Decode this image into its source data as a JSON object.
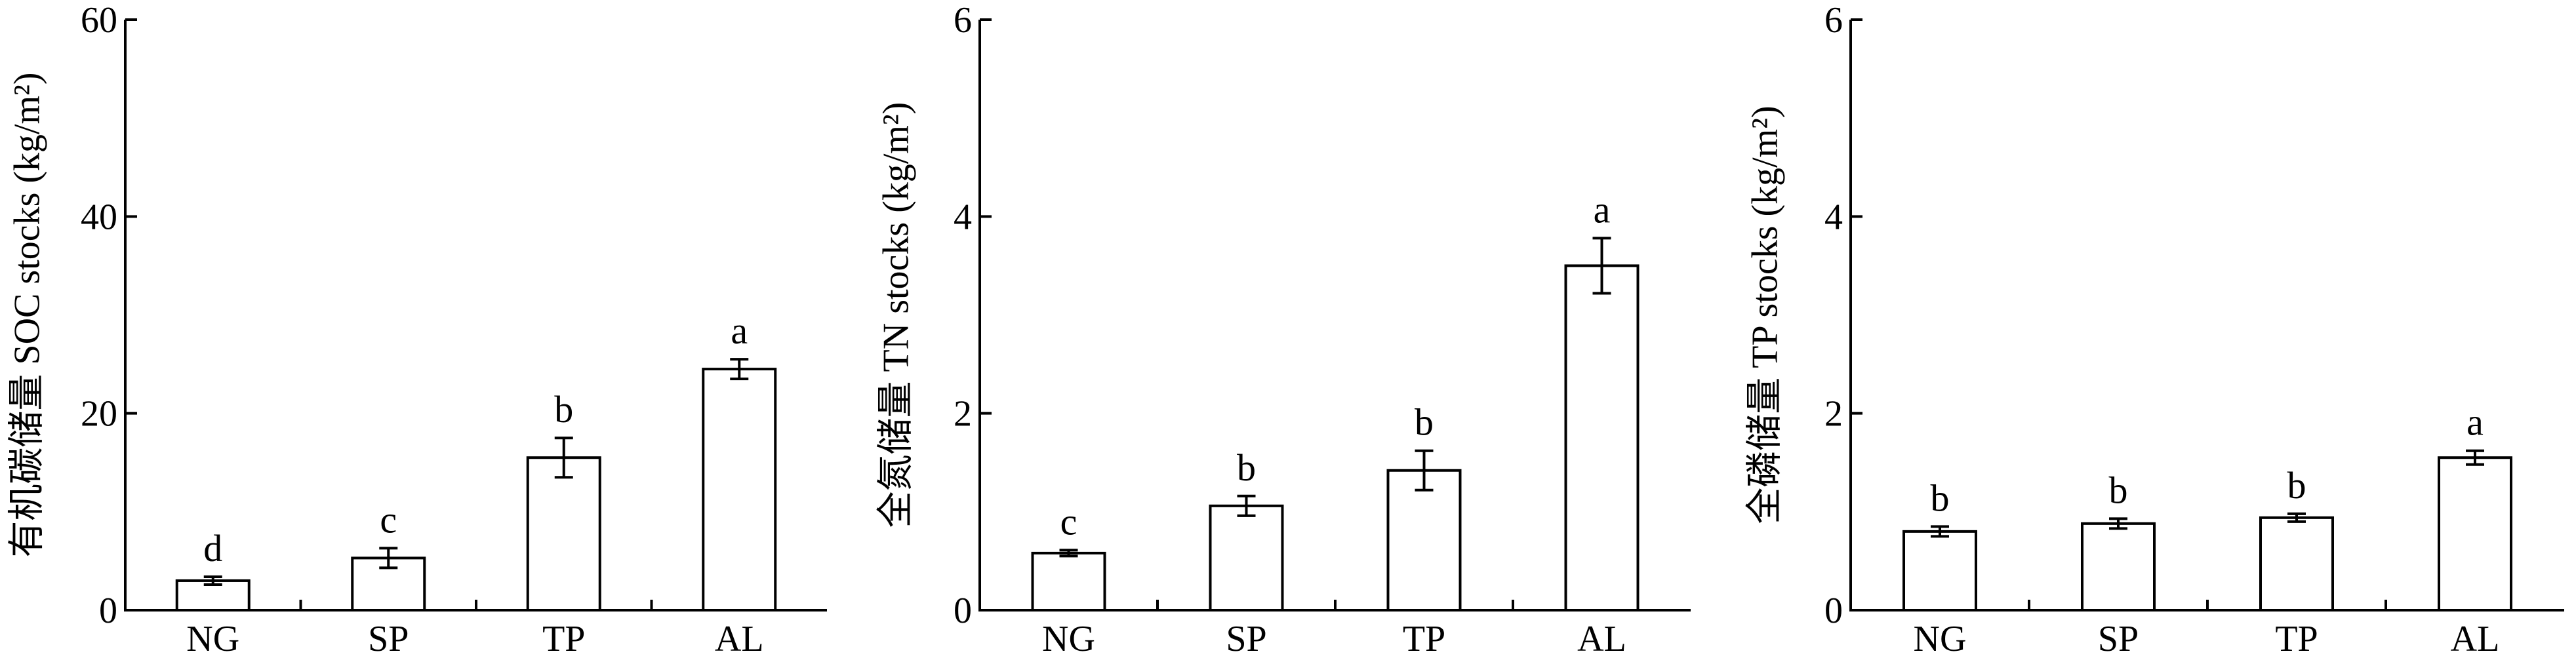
{
  "chart_data": [
    {
      "type": "bar",
      "ylabel": "有机碳储量 SOC stocks (kg/m²)",
      "categories": [
        "NG",
        "SP",
        "TP",
        "AL"
      ],
      "values": [
        3.0,
        5.3,
        15.5,
        24.5
      ],
      "errors": [
        0.4,
        1.0,
        2.0,
        1.0
      ],
      "letters": [
        "d",
        "c",
        "b",
        "a"
      ],
      "ylim": [
        0,
        60
      ],
      "yticks": [
        "0",
        "20",
        "40",
        "60"
      ],
      "grid": false,
      "legend": "none"
    },
    {
      "type": "bar",
      "ylabel": "全氮储量 TN stocks (kg/m²)",
      "categories": [
        "NG",
        "SP",
        "TP",
        "AL"
      ],
      "values": [
        0.58,
        1.06,
        1.42,
        3.5
      ],
      "errors": [
        0.03,
        0.1,
        0.2,
        0.28
      ],
      "letters": [
        "c",
        "b",
        "b",
        "a"
      ],
      "ylim": [
        0,
        6
      ],
      "yticks": [
        "0",
        "2",
        "4",
        "6"
      ],
      "grid": false,
      "legend": "none"
    },
    {
      "type": "bar",
      "ylabel": "全磷储量 TP stocks (kg/m²)",
      "categories": [
        "NG",
        "SP",
        "TP",
        "AL"
      ],
      "values": [
        0.8,
        0.88,
        0.94,
        1.55
      ],
      "errors": [
        0.05,
        0.05,
        0.04,
        0.07
      ],
      "letters": [
        "b",
        "b",
        "b",
        "a"
      ],
      "ylim": [
        0,
        6
      ],
      "yticks": [
        "0",
        "2",
        "4",
        "6"
      ],
      "grid": false,
      "legend": "none"
    }
  ]
}
